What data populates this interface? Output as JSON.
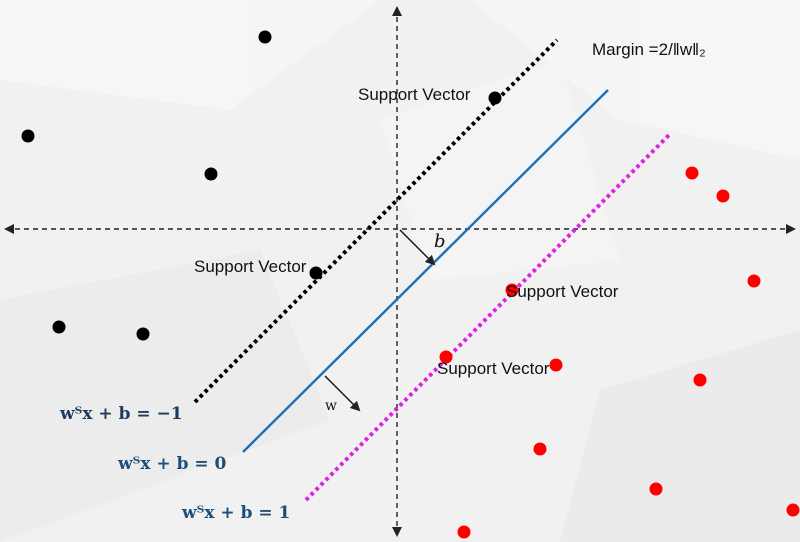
{
  "labels": {
    "margin": "Margin =2/‖w‖₂",
    "support_vector_1": "Support Vector",
    "support_vector_2": "Support Vector",
    "support_vector_3": "Support Vector",
    "support_vector_4": "Support Vector",
    "b": "b",
    "w": "w",
    "eq_minus1": "wᵀx + b = −1",
    "eq_zero": "wᵀx + b = 0",
    "eq_plus1": "wᵀx + b = 1"
  },
  "colors": {
    "class_negative": "#000000",
    "class_positive": "#ff0000",
    "hyperplane": "#1f6fb5",
    "margin_negative": "#000000",
    "margin_positive": "#e020e0",
    "axes": "#222222"
  },
  "chart_data": {
    "type": "scatter",
    "series": [
      {
        "points": [
          [
            265,
            37
          ],
          [
            28,
            136
          ],
          [
            211,
            174
          ],
          [
            59,
            327
          ],
          [
            143,
            334
          ],
          [
            495,
            98
          ],
          [
            316,
            273
          ]
        ]
      },
      {
        "points": [
          [
            692,
            173
          ],
          [
            723,
            196
          ],
          [
            754,
            281
          ],
          [
            700,
            380
          ],
          [
            540,
            449
          ],
          [
            656,
            489
          ],
          [
            793,
            510
          ],
          [
            464,
            532
          ],
          [
            446,
            357
          ],
          [
            556,
            365
          ],
          [
            512,
            290
          ]
        ]
      }
    ],
    "lines": [
      {
        "style": "dotted",
        "from": [
          195,
          402
        ],
        "to": [
          557,
          40
        ]
      },
      {
        "style": "solid",
        "from": [
          243,
          452
        ],
        "to": [
          608,
          90
        ]
      },
      {
        "style": "dotted",
        "from": [
          306,
          500
        ],
        "to": [
          670,
          134
        ]
      }
    ]
  }
}
